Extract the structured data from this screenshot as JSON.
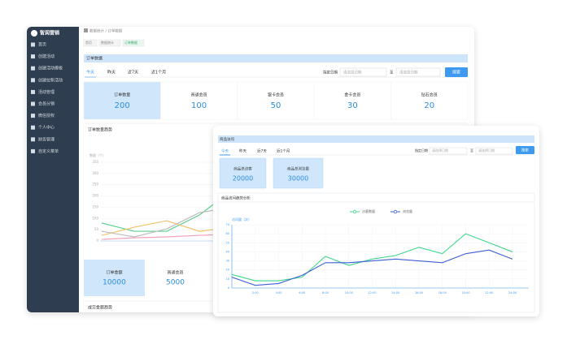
{
  "back": {
    "logo": "智润营销",
    "menu": [
      "首页",
      "创建活动",
      "创建活动模板",
      "创建拉新活动",
      "活动管理",
      "会员分销",
      "微信授权",
      "个人中心",
      "财务管理",
      "自定义菜单"
    ],
    "breadcrumb": "数据统计 / 订单数据",
    "tabs": [
      "首页",
      "数据统计",
      "订单数据"
    ],
    "section_title": "订单数据",
    "filters": [
      "今天",
      "昨天",
      "近7天",
      "近1个月"
    ],
    "date_label": "指定日期",
    "date_from": "请选择日期",
    "date_sep": "至",
    "date_to": "请选择日期",
    "search": "搜索",
    "stats": [
      {
        "label": "订单数量",
        "value": 200
      },
      {
        "label": "普通会员",
        "value": 100
      },
      {
        "label": "银卡会员",
        "value": 50
      },
      {
        "label": "金卡会员",
        "value": 30
      },
      {
        "label": "钻石会员",
        "value": 20
      }
    ],
    "chart": {
      "title": "订单数量趋势",
      "y_label": "数量（个）",
      "ylim": [
        0,
        350
      ],
      "yticks": [
        0,
        50,
        100,
        150,
        200,
        250,
        300,
        350
      ],
      "series": [
        {
          "color": "#5ad08f",
          "values": [
            80,
            43,
            43,
            115,
            225,
            260
          ]
        },
        {
          "color": "#f2c46d",
          "values": [
            25,
            61,
            90,
            43,
            60,
            70
          ]
        },
        {
          "color": "#bdbdbd",
          "values": [
            43,
            18,
            54,
            126,
            150,
            170
          ]
        },
        {
          "color": "#f3a3b8",
          "values": [
            7,
            14,
            18,
            25,
            30,
            35
          ]
        }
      ]
    },
    "amount_stats": [
      {
        "label": "订单金额",
        "value": 10000
      },
      {
        "label": "普通会员",
        "value": 5000
      }
    ],
    "amount_title": "成交金额趋势"
  },
  "front": {
    "title": "商品访问",
    "filters": [
      "今天",
      "昨天",
      "近7天",
      "近1个月"
    ],
    "date_label": "指定日期",
    "date_from": "请选择日期",
    "date_sep": "至",
    "date_to": "请选择日期",
    "search": "搜索",
    "stats": [
      {
        "label": "商品总访客",
        "value": 20000
      },
      {
        "label": "商品总浏览量",
        "value": 30000
      }
    ],
    "chart": {
      "type": "line",
      "title": "商品访问趋势分析",
      "y_label": "访问量（次）",
      "categories": [
        null,
        "2:00",
        "4:00",
        "6:00",
        "8:00",
        "10:00",
        "12:00",
        "14:00",
        "16:00",
        "18:00",
        "20:00",
        "22:00",
        "24:00"
      ],
      "ylim": [
        0,
        70
      ],
      "yticks": [
        0,
        10,
        20,
        30,
        40,
        50,
        60,
        70
      ],
      "grid": true,
      "series": [
        {
          "name": "访客数量",
          "color": "#3ed68a",
          "values": [
            15,
            8,
            8,
            12,
            35,
            25,
            32,
            36,
            45,
            38,
            60,
            50,
            40
          ]
        },
        {
          "name": "浏览量",
          "color": "#3f5fd6",
          "values": [
            12,
            3,
            5,
            14,
            28,
            28,
            30,
            32,
            30,
            28,
            38,
            42,
            32
          ]
        }
      ]
    }
  }
}
